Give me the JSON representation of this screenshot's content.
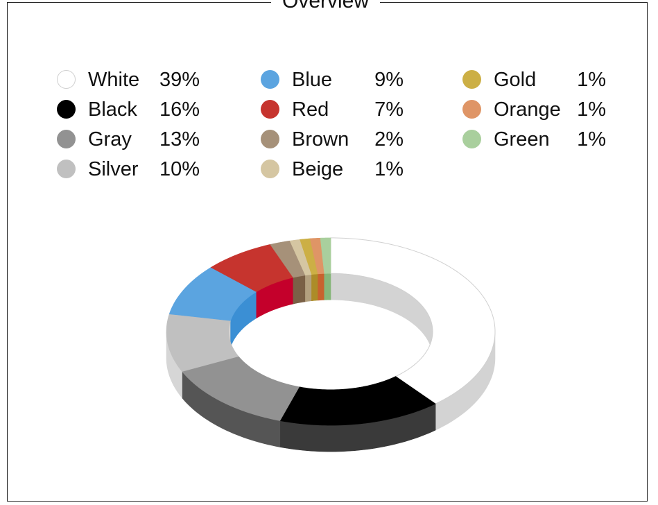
{
  "chart_data": {
    "type": "pie",
    "title": "Overview",
    "style": "3d-donut",
    "legend_position": "top",
    "categories": [
      "White",
      "Black",
      "Gray",
      "Silver",
      "Blue",
      "Red",
      "Brown",
      "Beige",
      "Gold",
      "Orange",
      "Green"
    ],
    "values": [
      39,
      16,
      13,
      10,
      9,
      7,
      2,
      1,
      1,
      1,
      1
    ],
    "value_labels": [
      "39%",
      "16%",
      "13%",
      "10%",
      "9%",
      "7%",
      "2%",
      "1%",
      "1%",
      "1%",
      "1%"
    ],
    "colors": [
      "#ffffff",
      "#000000",
      "#929292",
      "#c0c0c0",
      "#5ba4e0",
      "#c6342e",
      "#a69179",
      "#d5c6a2",
      "#ccaf45",
      "#df9566",
      "#a9cf9d"
    ],
    "side_colors": [
      "#d3d3d3",
      "#3a3a3a",
      "#555555",
      "#d6d6d6",
      "#3b8fd4",
      "#c4002b",
      "#7a6046",
      "#b3a07f",
      "#ac8c28",
      "#c8622e",
      "#86b679"
    ]
  }
}
